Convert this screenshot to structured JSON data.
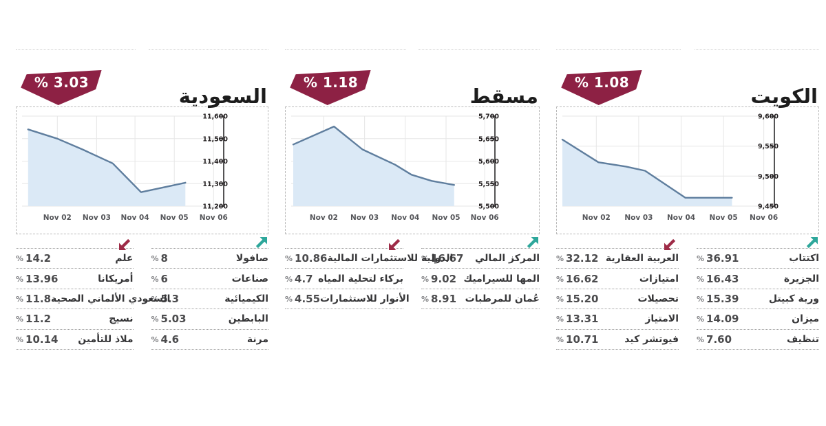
{
  "labels": {
    "pct_sign": "%"
  },
  "chart_data": [
    {
      "type": "area",
      "title": "الكويت",
      "index_change_percent": 1.08,
      "direction": "down",
      "x_ticks": [
        "Nov 02",
        "Nov 03",
        "Nov 04",
        "Nov 05",
        "Nov 06"
      ],
      "x_tick_positions": [
        0.16,
        0.36,
        0.56,
        0.76,
        0.95
      ],
      "y_tick_labels": [
        "9,600",
        "9,550",
        "9,500",
        "9,450"
      ],
      "ylim": [
        9450,
        9600
      ],
      "points": [
        [
          0.0,
          9561
        ],
        [
          0.17,
          9523
        ],
        [
          0.3,
          9516
        ],
        [
          0.39,
          9509
        ],
        [
          0.58,
          9464
        ],
        [
          0.8,
          9464
        ]
      ],
      "grid": true,
      "legend": "none"
    },
    {
      "type": "area",
      "title": "مسقط",
      "index_change_percent": 1.18,
      "direction": "down",
      "x_ticks": [
        "Nov 02",
        "Nov 03",
        "Nov 04",
        "Nov 05",
        "Nov 06"
      ],
      "x_tick_positions": [
        0.16,
        0.36,
        0.56,
        0.76,
        0.95
      ],
      "y_tick_labels": [
        "5,700",
        "5,650",
        "5,600",
        "5,550",
        "5,500"
      ],
      "ylim": [
        5500,
        5700
      ],
      "points": [
        [
          0.01,
          5637
        ],
        [
          0.21,
          5677
        ],
        [
          0.35,
          5626
        ],
        [
          0.51,
          5592
        ],
        [
          0.59,
          5570
        ],
        [
          0.69,
          5556
        ],
        [
          0.8,
          5547
        ]
      ],
      "grid": true,
      "legend": "none"
    },
    {
      "type": "area",
      "title": "السعودية",
      "index_change_percent": 3.03,
      "direction": "down",
      "x_ticks": [
        "Nov 02",
        "Nov 03",
        "Nov 04",
        "Nov 05",
        "Nov 06"
      ],
      "x_tick_positions": [
        0.175,
        0.37,
        0.56,
        0.755,
        0.95
      ],
      "y_tick_labels": [
        "11,600",
        "11,500",
        "11,400",
        "11,300",
        "11,200"
      ],
      "ylim": [
        11200,
        11600
      ],
      "points": [
        [
          0.03,
          11541
        ],
        [
          0.175,
          11500
        ],
        [
          0.3,
          11452
        ],
        [
          0.45,
          11390
        ],
        [
          0.59,
          11262
        ],
        [
          0.81,
          11304
        ]
      ],
      "grid": true,
      "legend": "none"
    }
  ],
  "panels": [
    {
      "title": "الكويت",
      "change_label": "% 1.08",
      "gainers": [
        {
          "name": "اكتتاب",
          "value": "36.91"
        },
        {
          "name": "الجزيرة",
          "value": "16.43"
        },
        {
          "name": "وربة كبيتل",
          "value": "15.39"
        },
        {
          "name": "ميزان",
          "value": "14.09"
        },
        {
          "name": "تنظيف",
          "value": "7.60"
        }
      ],
      "losers": [
        {
          "name": "العربية العقارية",
          "value": "32.12"
        },
        {
          "name": "امتيازات",
          "value": "16.62"
        },
        {
          "name": "تحصيلات",
          "value": "15.20"
        },
        {
          "name": "الامتياز",
          "value": "13.31"
        },
        {
          "name": "فيوتشر كيد",
          "value": "10.71"
        }
      ]
    },
    {
      "title": "مسقط",
      "change_label": "% 1.18",
      "gainers": [
        {
          "name": "المركز المالي",
          "value": "16.67"
        },
        {
          "name": "المها للسيراميك",
          "value": "9.02"
        },
        {
          "name": "عُمان للمرطبات",
          "value": "8.91"
        }
      ],
      "losers": [
        {
          "name": "الدولية للاستثمارات المالية",
          "value": "10.86"
        },
        {
          "name": "بركاء لتحلية المياه",
          "value": "4.7"
        },
        {
          "name": "الأنوار للاستثمارات",
          "value": "4.55"
        }
      ]
    },
    {
      "title": "السعودية",
      "change_label": "% 3.03",
      "gainers": [
        {
          "name": "صافولا",
          "value": "8"
        },
        {
          "name": "صناعات",
          "value": "6"
        },
        {
          "name": "الكيميائية",
          "value": "5.3"
        },
        {
          "name": "البابطين",
          "value": "5.03"
        },
        {
          "name": "مرنة",
          "value": "4.6"
        }
      ],
      "losers": [
        {
          "name": "علم",
          "value": "14.2"
        },
        {
          "name": "أمريكانا",
          "value": "13.96"
        },
        {
          "name": "السعودي الألماني الصحية",
          "value": "11.8"
        },
        {
          "name": "نسيج",
          "value": "11.2"
        },
        {
          "name": "ملاذ للتأمين",
          "value": "10.14"
        }
      ]
    }
  ],
  "colors": {
    "badge": "#8d2144",
    "loser_arrow": "#9e2b47",
    "gainer_arrow": "#2ea79b",
    "line": "#5f7e9e",
    "area_fill": "#dbe9f6",
    "axis": "#414042",
    "grid": "#e6e6e6"
  }
}
